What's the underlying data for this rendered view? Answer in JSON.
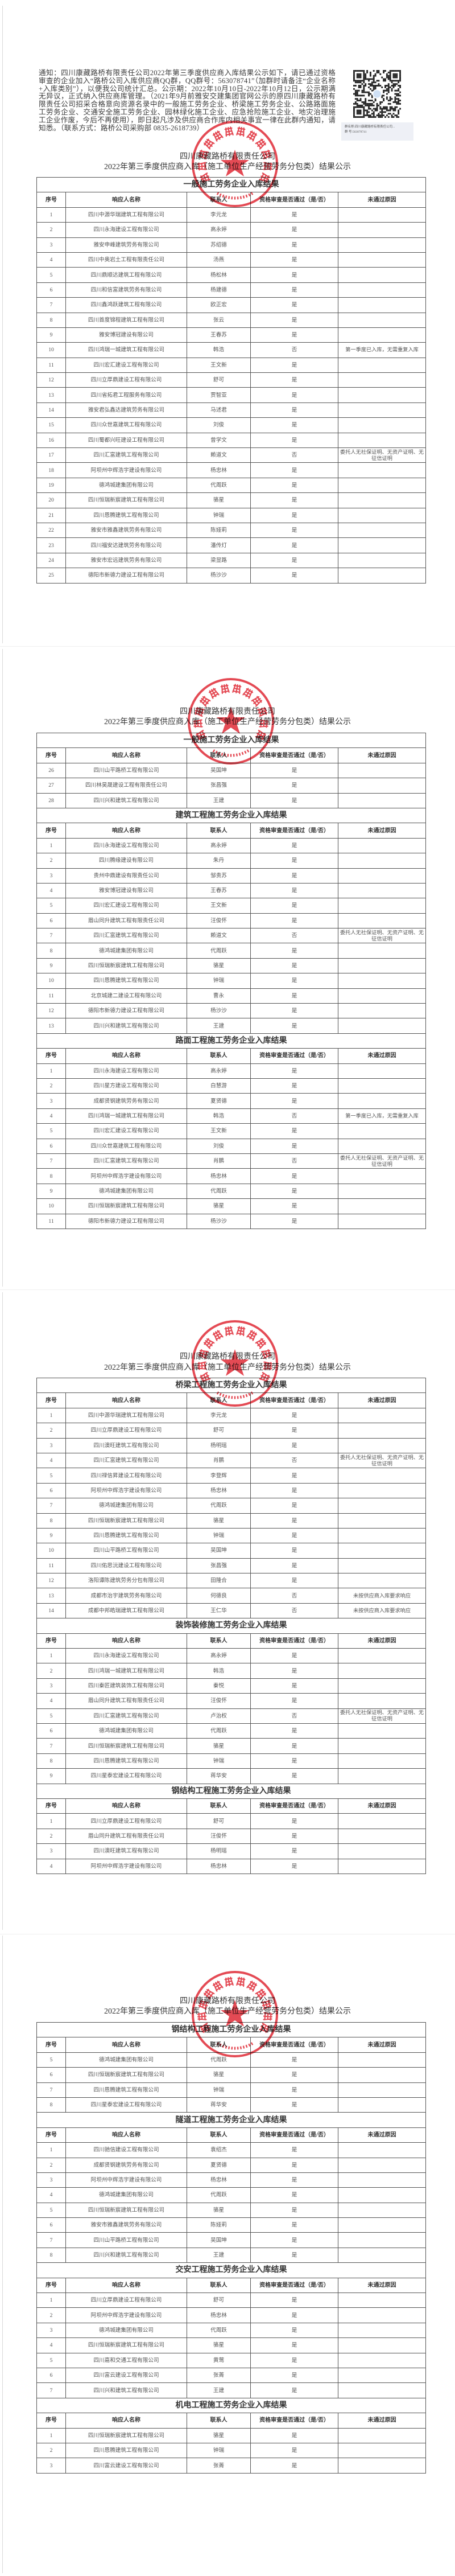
{
  "notice": "通知：四川康藏路桥有限责任公司2022年第三季度供应商入库结果公示如下，请已通过资格审查的企业加入“路桥公司入库供应商QQ群，QQ群号：563078741”（加群时请备注“企业名称+入库类别”），以便我公司统计汇总。公示期：2022年10月10日-2022年10月12日，公示期满无异议，正式纳入供应商库管理。（2021年9月前雅安交建集团官网公示的原四川康藏路桥有限责任公司招采合格意向资源名录中的一般施工劳务企业、桥梁施工劳务企业、公路路面施工劳务企业、交通安全施工劳务企业、园林绿化施工企业、应急抢险施工企业、地灾治理施工企业作废，今后不再使用），即日起凡涉及供应商合作库内相关事宜一律在此群内通知，请知悉。（联系方式：路桥公司采购部 0835-2618739）",
  "qr": {
    "icon": "qr-code-icon",
    "caption_line1": "群名称:四川康藏路桥有限责任公司...",
    "caption_line2": "群 号:563078741"
  },
  "doc": {
    "company": "四川康藏路桥有限责任公司",
    "title": "2022年第三季度供应商入库（施工单位生产经营劳务分包类）结果公示"
  },
  "seal": {
    "text": "四川康藏路桥有限责任公司",
    "number": "5118025034105",
    "color": "#e02a36"
  },
  "columns": [
    "序号",
    "响应人名称",
    "联系人",
    "资格审查是否通过（是/否）",
    "未通过原因"
  ],
  "reasons": {
    "r1": "第一季度已入库，无需重复入库",
    "r2": "委托人无社保证明、无资产证明、无征信证明",
    "r3": "未按供应商入库要求响应"
  },
  "pages": [
    {
      "blocks": [
        {
          "section": "一般施工劳务企业入库结果",
          "rows": [
            [
              "1",
              "四川中源华瑞建筑工程有限公司",
              "李元龙",
              "是",
              ""
            ],
            [
              "2",
              "四川永海建设工程有限公司",
              "高永婷",
              "是",
              ""
            ],
            [
              "3",
              "雅安申峰建筑劳务有限公司",
              "苏绍德",
              "是",
              ""
            ],
            [
              "4",
              "四川中奥岩土工程有限责任公司",
              "汤燕",
              "是",
              ""
            ],
            [
              "5",
              "四川鼎顺达建筑工程有限公司",
              "杨松林",
              "是",
              ""
            ],
            [
              "6",
              "四川和信富建筑劳务有限公司",
              "杨建德",
              "是",
              ""
            ],
            [
              "7",
              "四川鑫鸿跃建筑工程有限公司",
              "欧正宏",
              "是",
              ""
            ],
            [
              "8",
              "四川首度锦程建筑工程有限公司",
              "张云",
              "是",
              ""
            ],
            [
              "9",
              "雅安博冠建设有限公司",
              "王春苏",
              "是",
              ""
            ],
            [
              "10",
              "四川鸿瑞一城建筑工程有限公司",
              "韩浩",
              "否",
              "第一季度已入库，无需重复入库"
            ],
            [
              "11",
              "四川宏汇建设工程有限公司",
              "王文新",
              "是",
              ""
            ],
            [
              "12",
              "四川立厚鼎建设工程有限公司",
              "舒可",
              "是",
              ""
            ],
            [
              "13",
              "四川省拓君工程服务有限公司",
              "贾智亚",
              "是",
              ""
            ],
            [
              "14",
              "雅安君弘鑫达建筑劳务有限公司",
              "马述君",
              "是",
              ""
            ],
            [
              "15",
              "四川众世嘉建筑工程有限公司",
              "刘俊",
              "是",
              ""
            ],
            [
              "16",
              "四川蜀都兴旺建设工程有限公司",
              "曾学文",
              "是",
              ""
            ],
            [
              "17",
              "四川汇富建筑工程有限公司",
              "赖道文",
              "否",
              "委托人无社保证明、无资产证明、无征信证明"
            ],
            [
              "18",
              "阿坝州中辉浩宇建设有限公司",
              "杨忠林",
              "是",
              ""
            ],
            [
              "19",
              "德鸿城建集团有限公司",
              "代周跃",
              "是",
              ""
            ],
            [
              "20",
              "四川恒瑞新宸建筑工程有限公司",
              "骆星",
              "是",
              ""
            ],
            [
              "21",
              "四川恩腾建筑工程有限公司",
              "钟瑞",
              "是",
              ""
            ],
            [
              "22",
              "雅安市雅鑫建筑劳务有限公司",
              "陈娅莉",
              "是",
              ""
            ],
            [
              "23",
              "四川福安达建筑劳务有限公司",
              "潘传灯",
              "是",
              ""
            ],
            [
              "24",
              "雅安市宏远建筑劳务有限公司",
              "梁显路",
              "是",
              ""
            ],
            [
              "25",
              "德阳市新德力建设工程有限公司",
              "杨沙沙",
              "是",
              ""
            ]
          ]
        }
      ]
    },
    {
      "blocks": [
        {
          "section": "一般施工劳务企业入库结果",
          "rows": [
            [
              "26",
              "四川山平路桥工程有限公司",
              "吴国坤",
              "是",
              ""
            ],
            [
              "27",
              "四川林昊晟建设工程有限责任公司",
              "张昌强",
              "是",
              ""
            ],
            [
              "28",
              "四川兴和建筑工程有限公司",
              "王建",
              "是",
              ""
            ]
          ]
        },
        {
          "section": "建筑工程施工劳务企业入库结果",
          "rows": [
            [
              "1",
              "四川永海建设工程有限公司",
              "高永婷",
              "是",
              ""
            ],
            [
              "2",
              "四川腾缘建设有限公司",
              "朱丹",
              "是",
              ""
            ],
            [
              "3",
              "贵州中鼎建设有限责任公司",
              "邹贵苏",
              "是",
              ""
            ],
            [
              "4",
              "雅安博冠建设有限公司",
              "王春苏",
              "是",
              ""
            ],
            [
              "5",
              "四川宏汇建设工程有限公司",
              "王文新",
              "是",
              ""
            ],
            [
              "6",
              "眉山同升建筑工程有限责任公司",
              "汪俊怀",
              "是",
              ""
            ],
            [
              "7",
              "四川汇富建筑工程有限公司",
              "赖道文",
              "否",
              "委托人无社保证明、无资产证明、无征信证明"
            ],
            [
              "8",
              "德鸿城建集团有限公司",
              "代周跃",
              "是",
              ""
            ],
            [
              "9",
              "四川恒瑞新宸建筑工程有限公司",
              "骆星",
              "是",
              ""
            ],
            [
              "10",
              "四川恩腾建筑工程有限公司",
              "钟瑞",
              "是",
              ""
            ],
            [
              "11",
              "北京城建二建设工程有限公司",
              "曹永",
              "是",
              ""
            ],
            [
              "12",
              "德阳市新德力建设工程有限公司",
              "杨沙沙",
              "是",
              ""
            ],
            [
              "13",
              "四川兴和建筑工程有限公司",
              "王建",
              "是",
              ""
            ]
          ]
        },
        {
          "section": "路面工程施工劳务企业入库结果",
          "rows": [
            [
              "1",
              "四川永海建设工程有限公司",
              "高永婷",
              "是",
              ""
            ],
            [
              "2",
              "四川星方建设工程有限公司",
              "白慧游",
              "是",
              ""
            ],
            [
              "3",
              "成都贤钢建筑劳务有限公司",
              "夏贤德",
              "是",
              ""
            ],
            [
              "4",
              "四川鸿瑞一城建筑工程有限公司",
              "韩浩",
              "否",
              "第一季度已入库，无需重复入库"
            ],
            [
              "5",
              "四川宏汇建设工程有限公司",
              "王文新",
              "是",
              ""
            ],
            [
              "6",
              "四川众世嘉建筑工程有限公司",
              "刘俊",
              "是",
              ""
            ],
            [
              "7",
              "四川汇富建筑工程有限公司",
              "肖鹏",
              "否",
              "委托人无社保证明、无资产证明、无征信证明"
            ],
            [
              "8",
              "阿坝州中辉浩宇建设有限公司",
              "杨忠林",
              "是",
              ""
            ],
            [
              "9",
              "德鸿城建集团有限公司",
              "代周跃",
              "是",
              ""
            ],
            [
              "10",
              "四川恒瑞新宸建筑工程有限公司",
              "骆星",
              "是",
              ""
            ],
            [
              "11",
              "德阳市新德力建设工程有限公司",
              "杨沙沙",
              "是",
              ""
            ]
          ]
        }
      ]
    },
    {
      "blocks": [
        {
          "section": "桥梁工程施工劳务企业入库结果",
          "rows": [
            [
              "1",
              "四川中源华瑞建筑工程有限公司",
              "李元龙",
              "是",
              ""
            ],
            [
              "2",
              "四川立厚鼎建设工程有限公司",
              "舒可",
              "是",
              ""
            ],
            [
              "3",
              "四川澳旺建筑工程有限公司",
              "杨明瑶",
              "是",
              ""
            ],
            [
              "4",
              "四川汇富建筑工程有限公司",
              "肖鹏",
              "否",
              "委托人无社保证明、无资产证明、无征信证明"
            ],
            [
              "5",
              "四川禄信昇建设工程有限公司",
              "李登辉",
              "是",
              ""
            ],
            [
              "6",
              "阿坝州中辉浩宇建设有限公司",
              "杨忠林",
              "是",
              ""
            ],
            [
              "7",
              "德鸿城建集团有限公司",
              "代周跃",
              "是",
              ""
            ],
            [
              "8",
              "四川恒瑞新宸建筑工程有限公司",
              "骆星",
              "是",
              ""
            ],
            [
              "9",
              "四川恩腾建筑工程有限公司",
              "钟瑞",
              "是",
              ""
            ],
            [
              "10",
              "四川山平路桥工程有限公司",
              "吴国坤",
              "是",
              ""
            ],
            [
              "11",
              "四川佑思沅建设工程有限公司",
              "张昌强",
              "是",
              ""
            ],
            [
              "12",
              "洛阳谭陈建筑劳务分包有限公司",
              "田隆合",
              "是",
              ""
            ],
            [
              "13",
              "成都市治宇建筑劳务有限公司",
              "何德良",
              "否",
              "未按供应商入库要求响应"
            ],
            [
              "14",
              "成都中邦皓瑞建筑工程有限公司",
              "王仁华",
              "否",
              "未按供应商入库要求响应"
            ]
          ]
        },
        {
          "section": "装饰装修施工劳务企业入库结果",
          "rows": [
            [
              "1",
              "四川永海建设工程有限公司",
              "高永婷",
              "是",
              ""
            ],
            [
              "2",
              "四川鸿瑞一城建筑工程有限公司",
              "韩浩",
              "是",
              ""
            ],
            [
              "3",
              "四川秦匠建筑装饰工程有限公司",
              "秦悦",
              "是",
              ""
            ],
            [
              "4",
              "眉山同升建筑工程有限责任公司",
              "汪俊怀",
              "是",
              ""
            ],
            [
              "5",
              "四川汇富建筑工程有限公司",
              "卢治权",
              "否",
              "委托人无社保证明、无资产证明、无征信证明"
            ],
            [
              "6",
              "德鸿城建集团有限公司",
              "代周跃",
              "是",
              ""
            ],
            [
              "7",
              "四川恒瑞新宸建筑工程有限公司",
              "骆星",
              "是",
              ""
            ],
            [
              "8",
              "四川恩腾建筑工程有限公司",
              "钟瑞",
              "是",
              ""
            ],
            [
              "9",
              "四川星泰宏建设工程有限公司",
              "蒋华安",
              "是",
              ""
            ]
          ]
        },
        {
          "section": "钢结构工程施工劳务企业入库结果",
          "rows": [
            [
              "1",
              "四川立厚鼎建设工程有限公司",
              "舒可",
              "是",
              ""
            ],
            [
              "2",
              "眉山同升建筑工程有限责任公司",
              "汪俊怀",
              "是",
              ""
            ],
            [
              "3",
              "四川澳旺建筑工程有限公司",
              "杨明瑶",
              "是",
              ""
            ],
            [
              "4",
              "阿坝州中辉浩宇建设有限公司",
              "杨忠林",
              "是",
              ""
            ]
          ]
        }
      ]
    },
    {
      "blocks": [
        {
          "section": "钢结构工程施工劳务企业入库结果",
          "rows": [
            [
              "5",
              "德鸿城建集团有限公司",
              "代周跃",
              "是",
              ""
            ],
            [
              "6",
              "四川恒瑞新宸建筑工程有限公司",
              "骆星",
              "是",
              ""
            ],
            [
              "7",
              "四川恩腾建筑工程有限公司",
              "钟瑞",
              "是",
              ""
            ],
            [
              "8",
              "四川星泰宏建设工程有限公司",
              "蒋华安",
              "是",
              ""
            ]
          ]
        },
        {
          "section": "隧道工程施工劳务企业入库结果",
          "rows": [
            [
              "1",
              "四川驰信建设工程有限公司",
              "袁绍杰",
              "是",
              ""
            ],
            [
              "2",
              "成都贤钢建筑劳务有限公司",
              "夏贤德",
              "是",
              ""
            ],
            [
              "3",
              "阿坝州中辉浩宇建设有限公司",
              "杨忠林",
              "是",
              ""
            ],
            [
              "4",
              "德鸿城建集团有限公司",
              "代周跃",
              "是",
              ""
            ],
            [
              "5",
              "四川恒瑞新宸建筑工程有限公司",
              "骆星",
              "是",
              ""
            ],
            [
              "6",
              "雅安市雅鑫建筑劳务有限公司",
              "陈娅莉",
              "是",
              ""
            ],
            [
              "7",
              "四川山平路桥工程有限公司",
              "吴国坤",
              "是",
              ""
            ],
            [
              "8",
              "四川兴和建筑工程有限公司",
              "王建",
              "是",
              ""
            ]
          ]
        },
        {
          "section": "交安工程施工劳务企业入库结果",
          "rows": [
            [
              "1",
              "四川立厚鼎建设工程有限公司",
              "舒可",
              "是",
              ""
            ],
            [
              "2",
              "阿坝州中辉浩宇建设有限公司",
              "杨忠林",
              "是",
              ""
            ],
            [
              "3",
              "德鸿城建集团有限公司",
              "代周跃",
              "是",
              ""
            ],
            [
              "4",
              "四川恒瑞新宸建筑工程有限公司",
              "骆星",
              "是",
              ""
            ],
            [
              "5",
              "四川嘉和交通工程有限公司",
              "黄莺",
              "是",
              ""
            ],
            [
              "6",
              "四川富云建设工程有限公司",
              "张菁",
              "是",
              ""
            ],
            [
              "7",
              "四川兴和建筑工程有限公司",
              "王建",
              "是",
              ""
            ]
          ]
        },
        {
          "section": "机电工程施工劳务企业入库结果",
          "rows": [
            [
              "1",
              "四川恒瑞新宸建筑工程有限公司",
              "骆星",
              "是",
              ""
            ],
            [
              "2",
              "四川恩腾建筑工程有限公司",
              "钟瑞",
              "是",
              ""
            ],
            [
              "3",
              "四川富云建设工程有限公司",
              "张菁",
              "是",
              ""
            ]
          ]
        }
      ]
    }
  ]
}
